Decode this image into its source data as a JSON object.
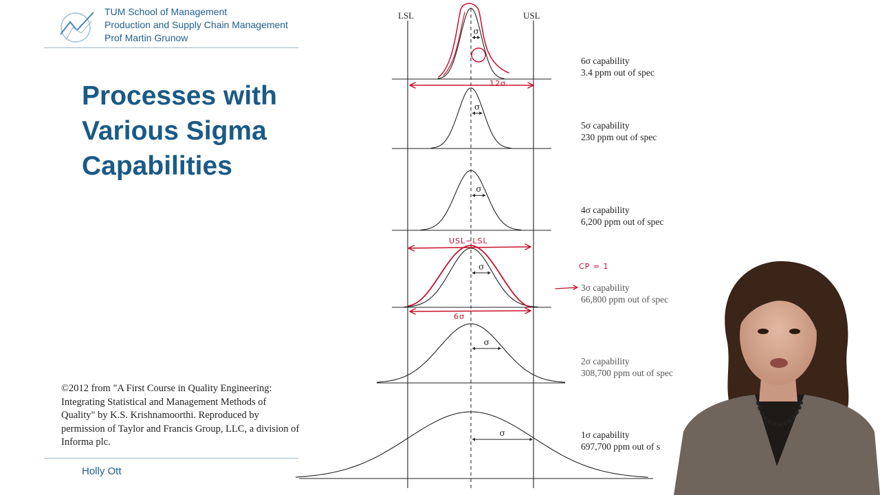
{
  "header": {
    "lines": [
      "TUM School of Management",
      "Production and Supply Chain Management",
      "Prof Martin Grunow"
    ]
  },
  "title": {
    "lines": [
      "Processes with",
      "Various Sigma",
      "Capabilities"
    ]
  },
  "credit": "©2012 from \"A First Course in Quality Engineering: Integrating Statistical and Management Methods of Quality\" by K.S. Krishnamoorthi. Reproduced by permission of Taylor and Francis Group, LLC, a division of Informa plc.",
  "presenter": "Holly Ott",
  "diagram": {
    "lsl": "LSL",
    "usl": "USL",
    "sigma_symbol": "σ",
    "rows": [
      {
        "line1": "6σ capability",
        "line2": "3.4 ppm out of spec"
      },
      {
        "line1": "5σ capability",
        "line2": "230 ppm out of spec"
      },
      {
        "line1": "4σ capability",
        "line2": "6,200 ppm out of spec"
      },
      {
        "line1": "3σ capability",
        "line2": "66,800 ppm out of spec"
      },
      {
        "line1": "2σ capability",
        "line2": "308,700 ppm out of spec"
      },
      {
        "line1": "1σ capability",
        "line2": "697,700 ppm out of s"
      }
    ]
  },
  "annotations": {
    "twelve_sigma": "12σ",
    "usl_minus_lsl": "USL−LSL",
    "cp_equals_one": "CP = 1",
    "six_sigma": "6σ",
    "color": "#c8102e"
  }
}
